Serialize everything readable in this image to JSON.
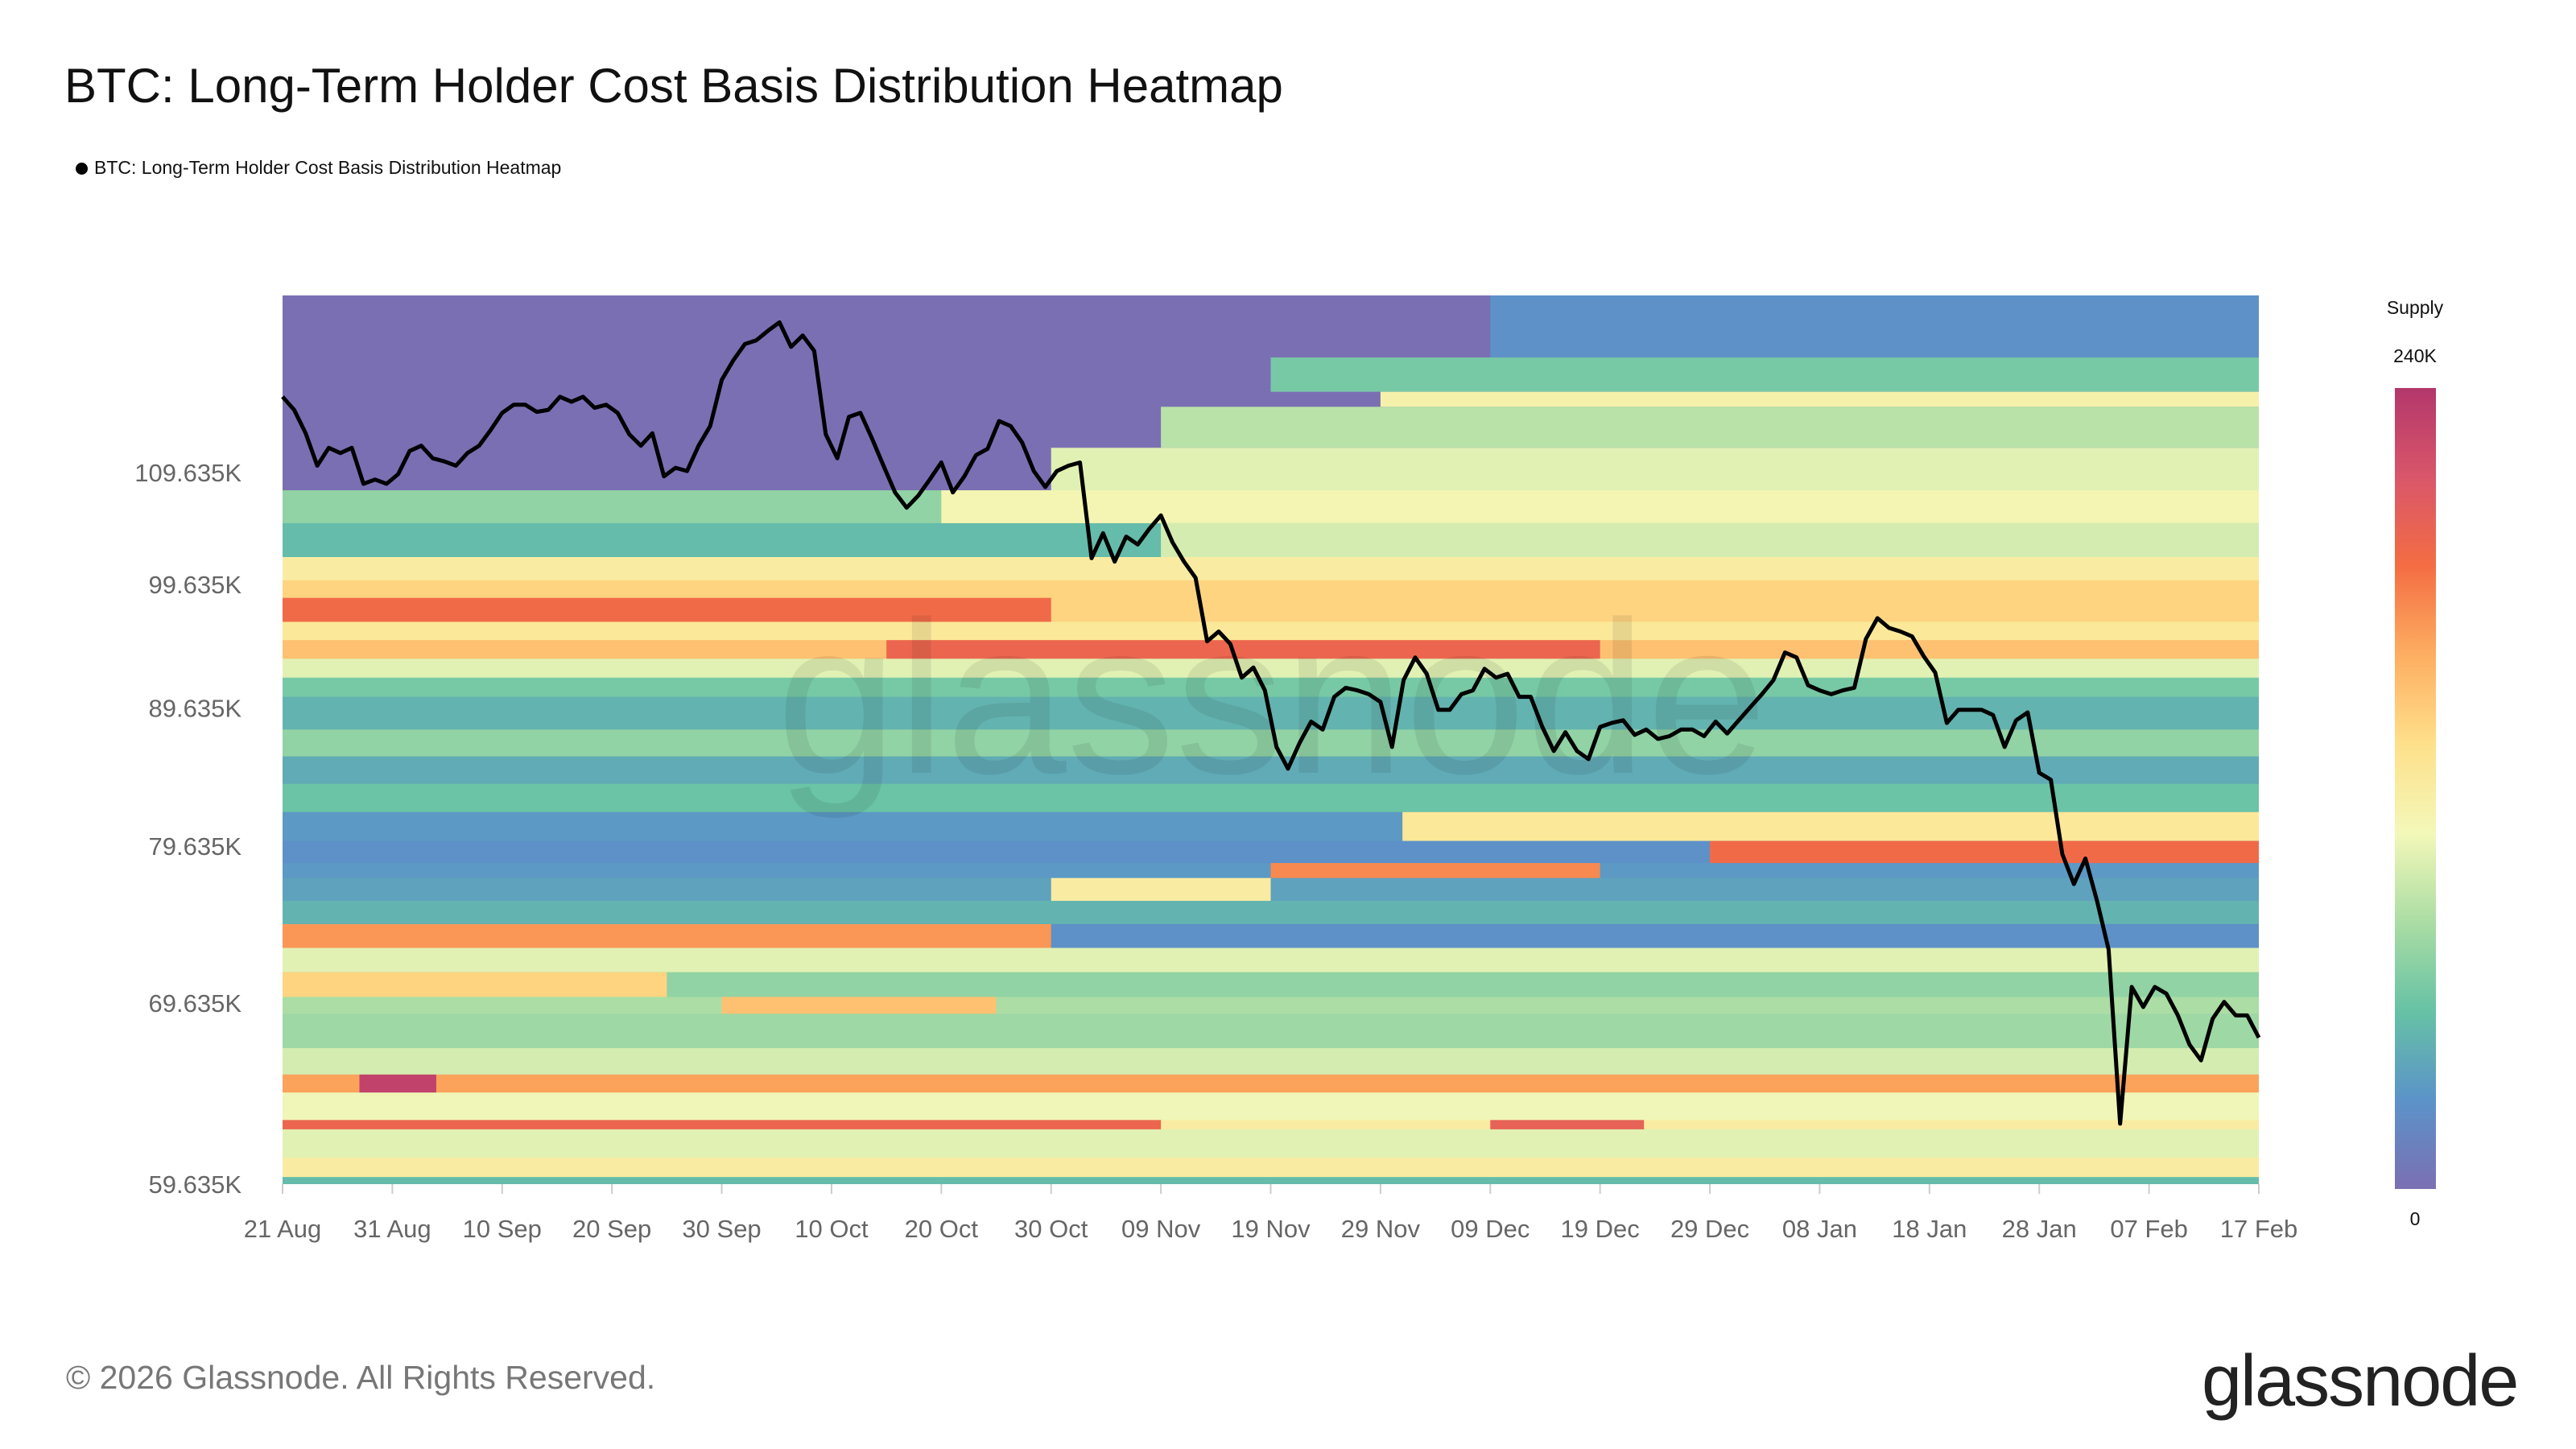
{
  "title": "BTC: Long-Term Holder Cost Basis Distribution Heatmap",
  "legend_label": "BTC: Long-Term Holder Cost Basis Distribution Heatmap",
  "footer": "© 2026 Glassnode. All Rights Reserved.",
  "logo_text": "glassnode",
  "watermark": "glassnode",
  "chart_data": {
    "type": "heatmap",
    "title": "BTC: Long-Term Holder Cost Basis Distribution Heatmap",
    "x_range": [
      "2025-08-21",
      "2026-02-17"
    ],
    "x_ticks": [
      {
        "date": "2025-08-21",
        "label": "21 Aug"
      },
      {
        "date": "2025-08-31",
        "label": "31 Aug"
      },
      {
        "date": "2025-09-10",
        "label": "10 Sep"
      },
      {
        "date": "2025-09-20",
        "label": "20 Sep"
      },
      {
        "date": "2025-09-30",
        "label": "30 Sep"
      },
      {
        "date": "2025-10-10",
        "label": "10 Oct"
      },
      {
        "date": "2025-10-20",
        "label": "20 Oct"
      },
      {
        "date": "2025-10-30",
        "label": "30 Oct"
      },
      {
        "date": "2025-11-09",
        "label": "09 Nov"
      },
      {
        "date": "2025-11-19",
        "label": "19 Nov"
      },
      {
        "date": "2025-11-29",
        "label": "29 Nov"
      },
      {
        "date": "2025-12-09",
        "label": "09 Dec"
      },
      {
        "date": "2025-12-19",
        "label": "19 Dec"
      },
      {
        "date": "2025-12-29",
        "label": "29 Dec"
      },
      {
        "date": "2026-01-08",
        "label": "08 Jan"
      },
      {
        "date": "2026-01-18",
        "label": "18 Jan"
      },
      {
        "date": "2026-01-28",
        "label": "28 Jan"
      },
      {
        "date": "2026-02-07",
        "label": "07 Feb"
      },
      {
        "date": "2026-02-17",
        "label": "17 Feb"
      }
    ],
    "y_scale": "log",
    "y_range_k": [
      59.635,
      127.6
    ],
    "y_ticks": [
      {
        "value": 59.635,
        "label": "59.635K"
      },
      {
        "value": 69.635,
        "label": "69.635K"
      },
      {
        "value": 79.635,
        "label": "79.635K"
      },
      {
        "value": 89.635,
        "label": "89.635K"
      },
      {
        "value": 99.635,
        "label": "99.635K"
      },
      {
        "value": 109.635,
        "label": "109.635K"
      }
    ],
    "colorbar": {
      "title": "Supply",
      "max_label": "240K",
      "min_label": "0",
      "range_k": [
        0,
        240
      ],
      "colors": [
        "#7b6fb3",
        "#5b93c9",
        "#66c2a5",
        "#abdda4",
        "#f3f8b8",
        "#fee08b",
        "#fdae61",
        "#f46d43",
        "#d9566a",
        "#b3376b"
      ]
    },
    "grid": false,
    "bands_note_units": "price in K USD, supply in K BTC",
    "bands": [
      {
        "lo": 121.0,
        "hi": 127.6,
        "base": 0,
        "segments": [
          [
            "2025-12-09",
            "2026-02-17",
            25
          ]
        ]
      },
      {
        "lo": 117.5,
        "hi": 121.0,
        "base": 0,
        "segments": [
          [
            "2025-11-19",
            "2026-02-17",
            60
          ]
        ]
      },
      {
        "lo": 116.0,
        "hi": 117.5,
        "base": 0,
        "segments": [
          [
            "2025-11-29",
            "2026-02-17",
            115
          ]
        ]
      },
      {
        "lo": 112.0,
        "hi": 116.0,
        "base": 0,
        "segments": [
          [
            "2025-11-09",
            "2026-02-17",
            85
          ]
        ]
      },
      {
        "lo": 108.0,
        "hi": 112.0,
        "base": 0,
        "segments": [
          [
            "2025-10-30",
            "2026-02-17",
            100
          ]
        ]
      },
      {
        "lo": 105.0,
        "hi": 108.0,
        "base": 70,
        "segments": [
          [
            "2025-10-20",
            "2026-02-17",
            110
          ]
        ]
      },
      {
        "lo": 102.0,
        "hi": 105.0,
        "base": 50,
        "segments": [
          [
            "2025-11-09",
            "2026-02-17",
            95
          ]
        ]
      },
      {
        "lo": 100.0,
        "hi": 102.0,
        "base": 120,
        "segments": []
      },
      {
        "lo": 98.5,
        "hi": 100.0,
        "base": 140,
        "segments": []
      },
      {
        "lo": 96.5,
        "hi": 98.5,
        "base": 140,
        "segments": [
          [
            "2025-08-21",
            "2025-10-30",
            190
          ]
        ]
      },
      {
        "lo": 95.0,
        "hi": 96.5,
        "base": 125,
        "segments": []
      },
      {
        "lo": 93.5,
        "hi": 95.0,
        "base": 150,
        "segments": [
          [
            "2025-10-15",
            "2025-12-19",
            195
          ]
        ]
      },
      {
        "lo": 92.0,
        "hi": 93.5,
        "base": 100,
        "segments": []
      },
      {
        "lo": 90.5,
        "hi": 92.0,
        "base": 60,
        "segments": []
      },
      {
        "lo": 88.0,
        "hi": 90.5,
        "base": 45,
        "segments": []
      },
      {
        "lo": 86.0,
        "hi": 88.0,
        "base": 70,
        "segments": []
      },
      {
        "lo": 84.0,
        "hi": 86.0,
        "base": 40,
        "segments": []
      },
      {
        "lo": 82.0,
        "hi": 84.0,
        "base": 55,
        "segments": []
      },
      {
        "lo": 80.0,
        "hi": 82.0,
        "base": 30,
        "segments": [
          [
            "2025-12-01",
            "2026-02-17",
            125
          ]
        ]
      },
      {
        "lo": 78.5,
        "hi": 80.0,
        "base": 25,
        "segments": [
          [
            "2025-12-29",
            "2026-02-17",
            190
          ]
        ]
      },
      {
        "lo": 77.5,
        "hi": 78.5,
        "base": 30,
        "segments": [
          [
            "2025-11-19",
            "2025-12-19",
            175
          ]
        ]
      },
      {
        "lo": 76.0,
        "hi": 77.5,
        "base": 35,
        "segments": [
          [
            "2025-10-30",
            "2025-11-19",
            120
          ]
        ]
      },
      {
        "lo": 74.5,
        "hi": 76.0,
        "base": 45,
        "segments": []
      },
      {
        "lo": 73.0,
        "hi": 74.5,
        "base": 25,
        "segments": [
          [
            "2025-08-21",
            "2025-10-30",
            170
          ]
        ]
      },
      {
        "lo": 71.5,
        "hi": 73.0,
        "base": 100,
        "segments": []
      },
      {
        "lo": 70.0,
        "hi": 71.5,
        "base": 70,
        "segments": [
          [
            "2025-08-21",
            "2025-09-25",
            140
          ]
        ]
      },
      {
        "lo": 69.0,
        "hi": 70.0,
        "base": 80,
        "segments": [
          [
            "2025-09-30",
            "2025-10-25",
            150
          ]
        ]
      },
      {
        "lo": 67.0,
        "hi": 69.0,
        "base": 75,
        "segments": []
      },
      {
        "lo": 65.5,
        "hi": 67.0,
        "base": 95,
        "segments": []
      },
      {
        "lo": 64.5,
        "hi": 65.5,
        "base": 165,
        "segments": [
          [
            "2025-08-28",
            "2025-09-04",
            230
          ]
        ]
      },
      {
        "lo": 63.0,
        "hi": 64.5,
        "base": 105,
        "segments": []
      },
      {
        "lo": 62.5,
        "hi": 63.0,
        "base": 120,
        "segments": [
          [
            "2025-08-21",
            "2025-11-09",
            195
          ],
          [
            "2025-12-09",
            "2025-12-23",
            200
          ]
        ]
      },
      {
        "lo": 61.0,
        "hi": 62.5,
        "base": 100,
        "segments": []
      },
      {
        "lo": 60.0,
        "hi": 61.0,
        "base": 120,
        "segments": []
      },
      {
        "lo": 59.635,
        "hi": 60.0,
        "base": 50,
        "segments": []
      }
    ],
    "price_line": {
      "color": "#000000",
      "x_start": "2025-08-21",
      "x_end": "2026-02-17",
      "values_k": [
        117.0,
        115.7,
        113.4,
        110.3,
        112.0,
        111.5,
        112.0,
        108.6,
        109.0,
        108.6,
        109.5,
        111.7,
        112.2,
        111.0,
        110.7,
        110.3,
        111.5,
        112.2,
        113.7,
        115.4,
        116.2,
        116.2,
        115.5,
        115.7,
        117.0,
        116.5,
        117.0,
        115.9,
        116.2,
        115.4,
        113.3,
        112.2,
        113.4,
        109.3,
        110.1,
        109.8,
        112.2,
        114.1,
        118.7,
        120.7,
        122.4,
        122.8,
        123.8,
        124.7,
        122.1,
        123.3,
        121.7,
        113.3,
        111.0,
        115.0,
        115.4,
        112.9,
        110.3,
        107.8,
        106.4,
        107.5,
        109.0,
        110.6,
        107.8,
        109.3,
        111.3,
        111.9,
        114.6,
        114.1,
        112.5,
        109.8,
        108.3,
        109.8,
        110.3,
        110.6,
        101.9,
        104.1,
        101.6,
        103.8,
        103.1,
        104.5,
        105.7,
        103.3,
        101.6,
        100.2,
        94.9,
        95.7,
        94.7,
        92.0,
        92.8,
        91.0,
        86.7,
        85.1,
        87.0,
        88.6,
        88.0,
        90.5,
        91.2,
        91.0,
        90.7,
        90.1,
        86.7,
        91.8,
        93.6,
        92.3,
        89.5,
        89.5,
        90.7,
        91.0,
        92.7,
        92.0,
        92.3,
        90.5,
        90.5,
        88.2,
        86.4,
        87.8,
        86.4,
        85.8,
        88.2,
        88.5,
        88.7,
        87.6,
        88.0,
        87.3,
        87.5,
        88.0,
        88.0,
        87.5,
        88.6,
        87.7,
        88.7,
        89.7,
        90.7,
        91.8,
        94.0,
        93.6,
        91.4,
        91.0,
        90.7,
        91.0,
        91.2,
        95.1,
        96.8,
        96.0,
        95.7,
        95.3,
        93.7,
        92.4,
        88.5,
        89.5,
        89.5,
        89.5,
        89.1,
        86.7,
        88.7,
        89.3,
        84.8,
        84.3,
        79.1,
        77.1,
        78.8,
        76.0,
        72.9,
        62.8,
        70.6,
        69.4,
        70.6,
        70.2,
        68.9,
        67.2,
        66.3,
        68.7,
        69.7,
        68.9,
        68.9,
        67.6
      ]
    }
  }
}
